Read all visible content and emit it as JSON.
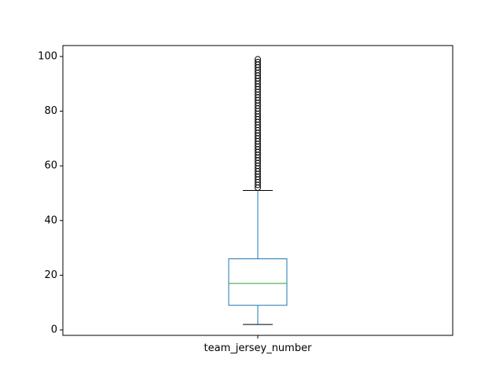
{
  "chart_data": {
    "type": "box",
    "title": "",
    "xlabel": "",
    "ylabel": "",
    "categories": [
      "team_jersey_number"
    ],
    "ylim": [
      -2,
      104
    ],
    "yticks": [
      0,
      20,
      40,
      60,
      80,
      100
    ],
    "ytick_labels": [
      "0",
      "20",
      "40",
      "60",
      "80",
      "100"
    ],
    "grid": false,
    "boxes": [
      {
        "name": "team_jersey_number",
        "whisker_low": 2,
        "q1": 9,
        "median": 17,
        "q3": 26,
        "whisker_high": 51,
        "outliers": [
          52,
          53,
          54,
          55,
          56,
          57,
          58,
          59,
          60,
          61,
          62,
          63,
          64,
          65,
          66,
          67,
          68,
          69,
          70,
          71,
          72,
          73,
          74,
          75,
          76,
          77,
          78,
          79,
          80,
          81,
          82,
          83,
          84,
          85,
          86,
          87,
          88,
          89,
          90,
          91,
          92,
          93,
          94,
          95,
          96,
          97,
          98,
          99
        ]
      }
    ],
    "colors": {
      "box": "#1f77b4",
      "median": "#2ca02c",
      "whisker": "#1f77b4",
      "cap": "#000000",
      "outlier": "#000000",
      "axes": "#000000"
    }
  }
}
